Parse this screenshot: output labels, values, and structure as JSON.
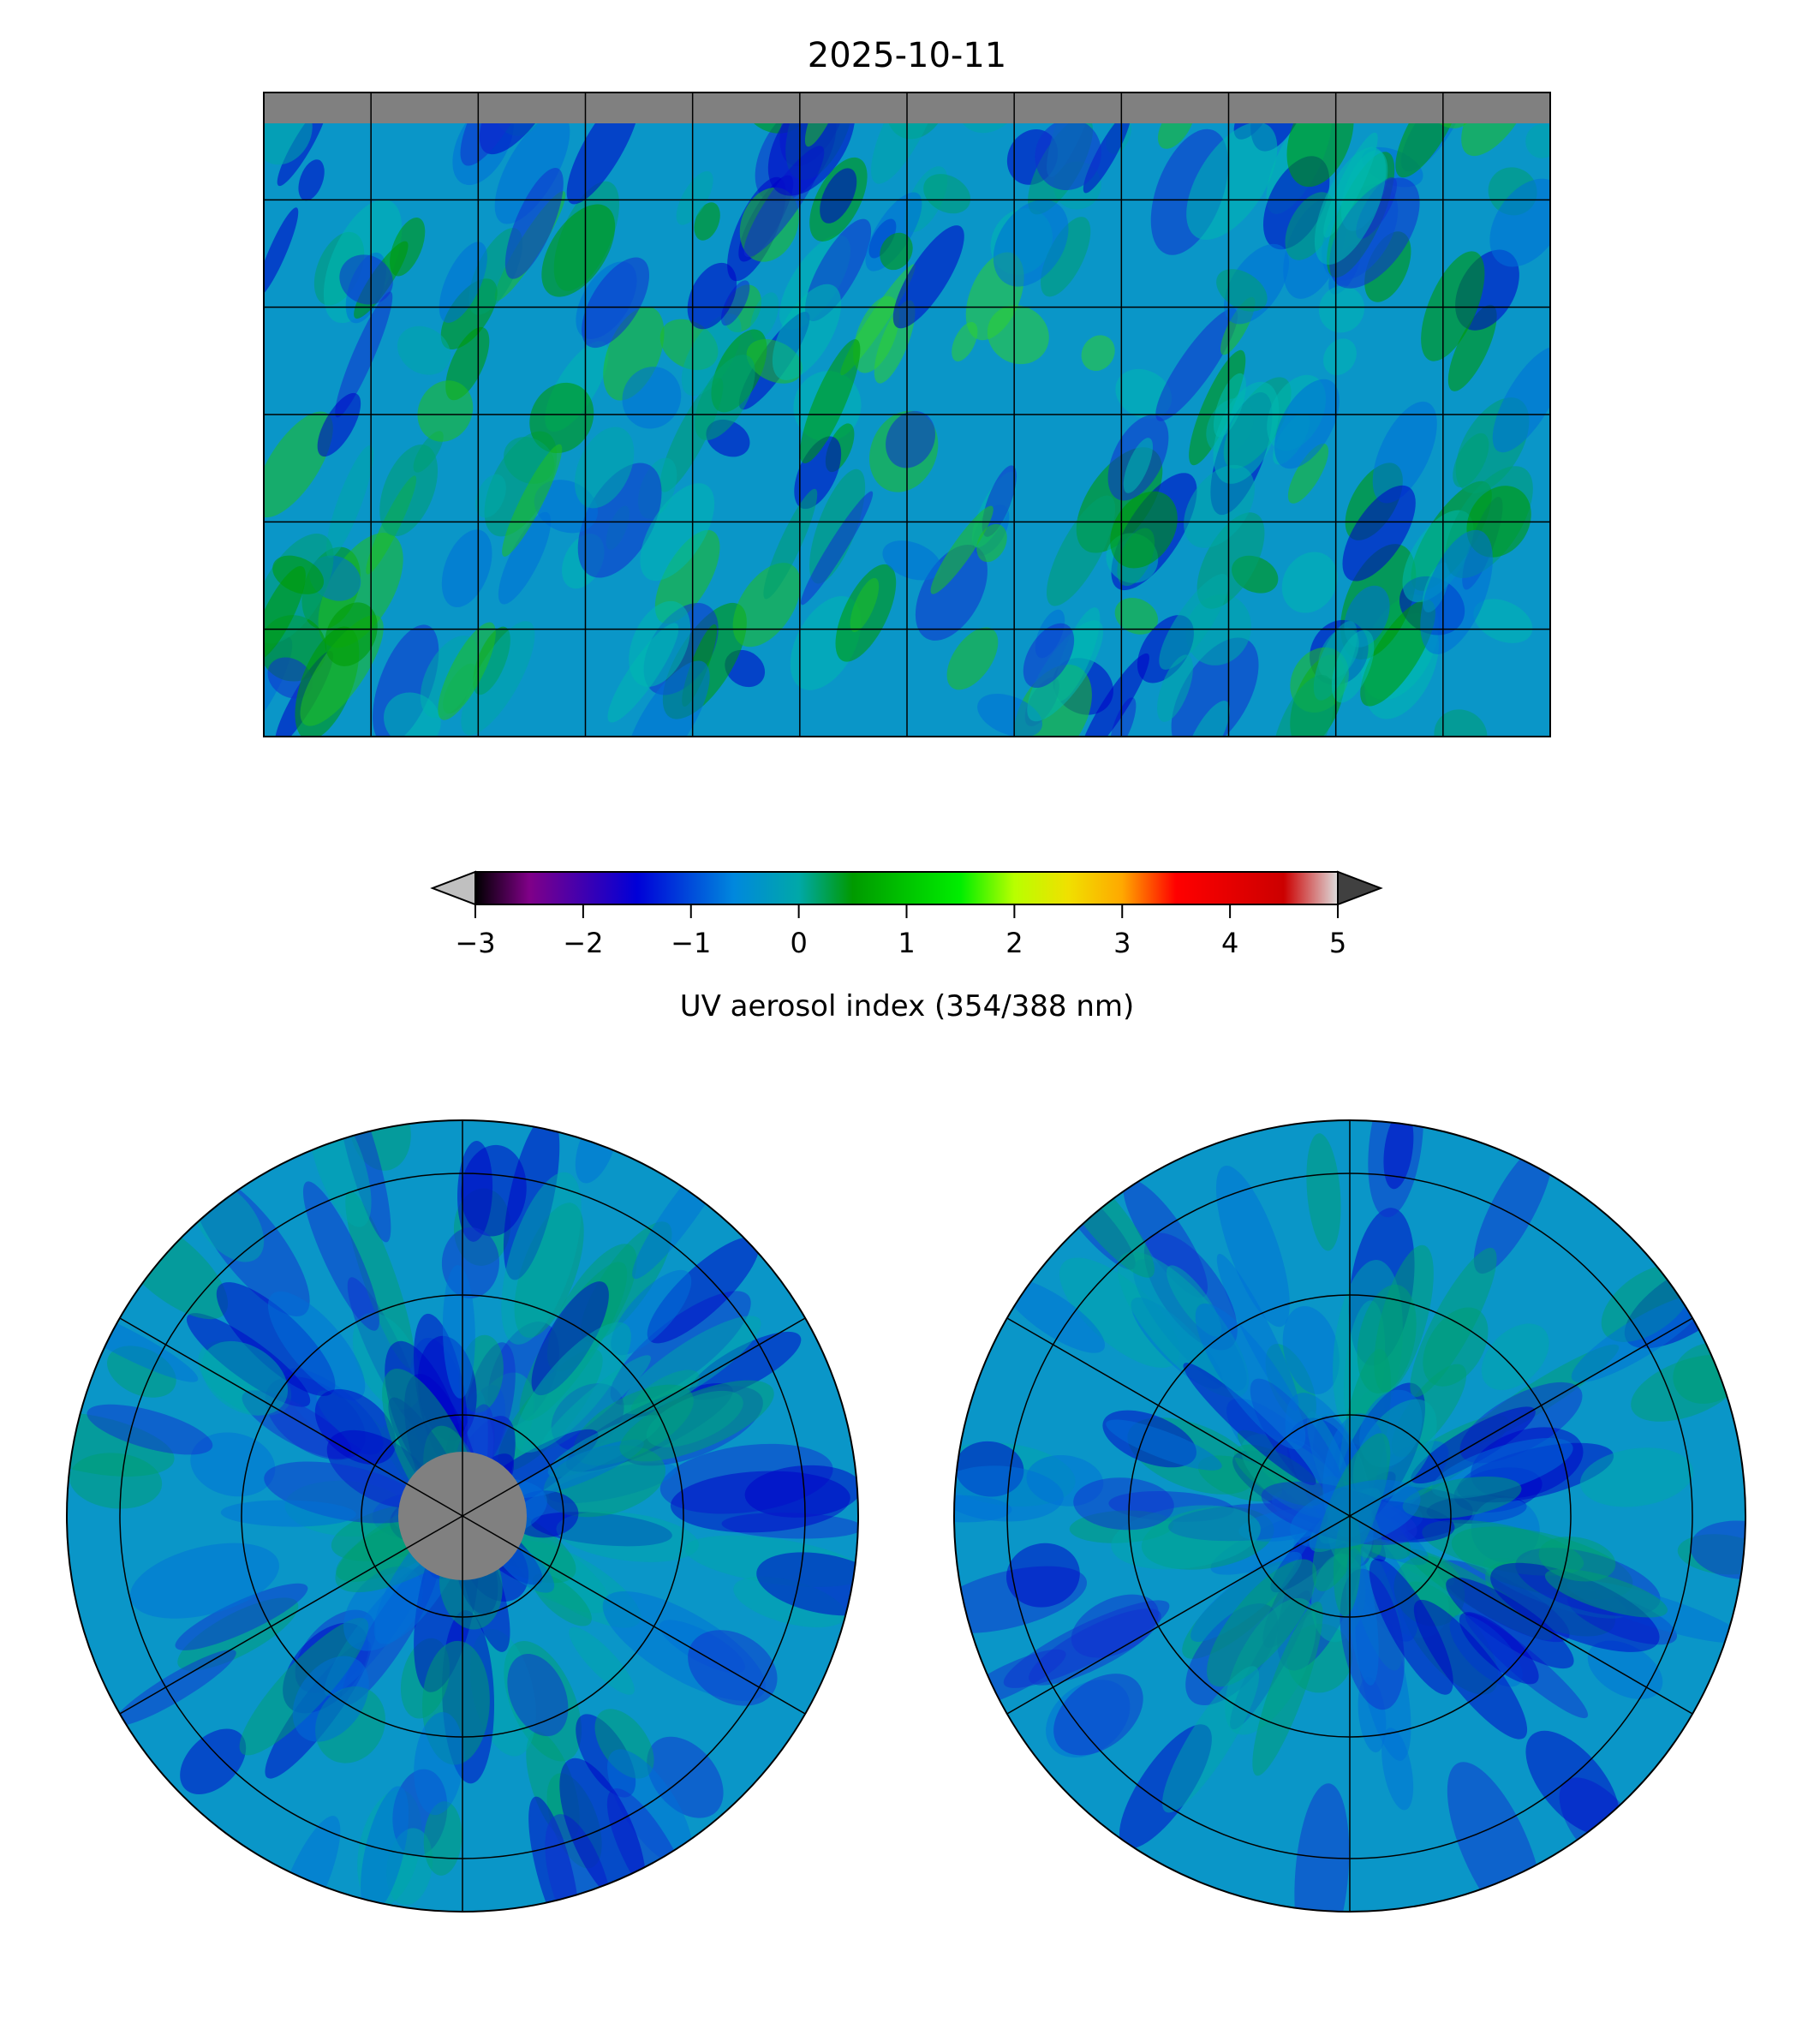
{
  "chart_data": {
    "type": "heatmap",
    "title": "2025-10-11",
    "panels": [
      "global-map",
      "north-polar-map",
      "south-polar-map"
    ],
    "colorbar": {
      "label": "UV aerosol index (354/388 nm)",
      "vmin": -3,
      "vmax": 5,
      "extend": "both",
      "ticks": [
        -3,
        -2,
        -1,
        0,
        1,
        2,
        3,
        4,
        5
      ],
      "tick_labels": [
        "−3",
        "−2",
        "−1",
        "0",
        "1",
        "2",
        "3",
        "4",
        "5"
      ],
      "colormap": [
        {
          "v": -3,
          "c": "#000000"
        },
        {
          "v": -2.5,
          "c": "#800088"
        },
        {
          "v": -1.5,
          "c": "#0000d8"
        },
        {
          "v": -0.6,
          "c": "#0088dd"
        },
        {
          "v": 0,
          "c": "#00a8a8"
        },
        {
          "v": 0.5,
          "c": "#009a00"
        },
        {
          "v": 1.5,
          "c": "#00ee00"
        },
        {
          "v": 2.0,
          "c": "#b8ff00"
        },
        {
          "v": 2.5,
          "c": "#f0e000"
        },
        {
          "v": 3.0,
          "c": "#ffa800"
        },
        {
          "v": 3.5,
          "c": "#ff0000"
        },
        {
          "v": 4.5,
          "c": "#cc0000"
        },
        {
          "v": 5,
          "c": "#dddddd"
        }
      ],
      "under_color": "#c0c0c0",
      "over_color": "#404040"
    },
    "grid": true,
    "missing_color": "#808080"
  }
}
